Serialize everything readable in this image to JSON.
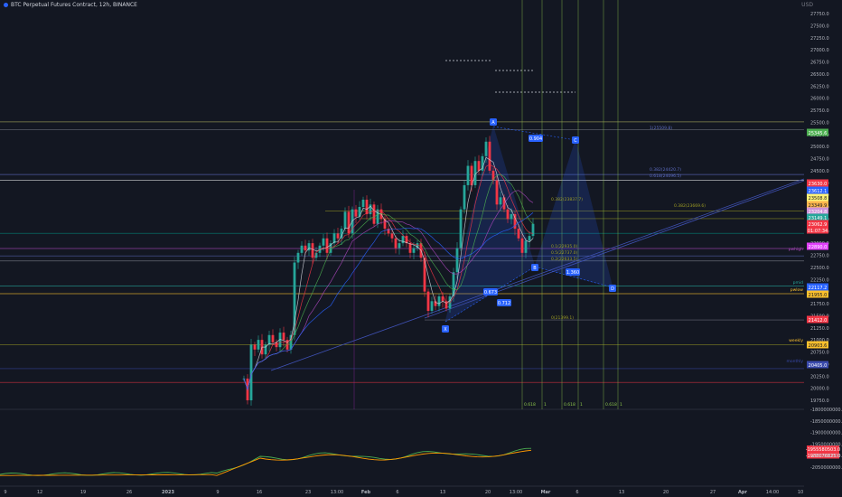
{
  "header": {
    "title": "BTC Perpetual Futures Contract, 12h, BINANCE"
  },
  "axis": {
    "currency": "USD",
    "price_ticks": [
      "27750.0",
      "27500.0",
      "27250.0",
      "27000.0",
      "26750.0",
      "26500.0",
      "26250.0",
      "26000.0",
      "25750.0",
      "25500.0",
      "25250.0",
      "25000.0",
      "24750.0",
      "24500.0",
      "24250.0",
      "24000.0",
      "23750.0",
      "23500.0",
      "23250.0",
      "23000.0",
      "22750.0",
      "22500.0",
      "22250.0",
      "22000.0",
      "21750.0",
      "21500.0",
      "21250.0",
      "21000.0",
      "20750.0",
      "20500.0",
      "20250.0",
      "20000.0",
      "19750.0"
    ],
    "indicator_ticks": [
      "-1800000000.0",
      "-1850000000.0",
      "-1900000000.0",
      "-1950000000.0",
      "-2000000000.0",
      "-2050000000.0"
    ],
    "time_ticks": [
      "9",
      "12",
      "19",
      "26",
      "2023",
      "9",
      "16",
      "23",
      "13:00",
      "Feb",
      "6",
      "13",
      "20",
      "13:00",
      "Mar",
      "6",
      "13",
      "20",
      "27",
      "Apr",
      "14:00",
      "10"
    ]
  },
  "price_badges": [
    {
      "text": "25345.6",
      "color": "#4caf50"
    },
    {
      "text": "23630.0",
      "color": "#f23645"
    },
    {
      "text": "23612.1",
      "color": "#2962ff"
    },
    {
      "text": "23508.8",
      "color": "#fff176"
    },
    {
      "text": "23349.9",
      "color": "#ffb74d"
    },
    {
      "text": "23204.8",
      "color": "#ce93d8"
    },
    {
      "text": "23149.1",
      "color": "#26a69a"
    },
    {
      "text": "23062.9",
      "color": "#f23645"
    },
    {
      "text": "01:07:34",
      "color": "#f23645"
    },
    {
      "text": "22890.0",
      "color": "#e040fb"
    },
    {
      "text": "22117.2",
      "color": "#2962ff"
    },
    {
      "text": "21955.0",
      "color": "#fbc02d"
    },
    {
      "text": "21412.0",
      "color": "#f23645"
    },
    {
      "text": "20903.6",
      "color": "#fbc02d"
    },
    {
      "text": "20405.0",
      "color": "#3949ab"
    }
  ],
  "level_labels": {
    "pwhigh": "pwhigh",
    "pmid": "pmid",
    "pwlow": "pwlow",
    "weekly": "weekly",
    "monthly": "monthly"
  },
  "fib_labels": [
    "1(25509.8)",
    "0.382(24420.7)",
    "0.618(24096.5)",
    "0.382(23669.6)",
    "0.382(23837.7)",
    "0.1(22935.0)",
    "0.5(22737.0)",
    "0.2(22633.5)",
    "0(21399.1)"
  ],
  "pattern_points": {
    "a": "A",
    "b": "B",
    "c": "C",
    "d": "D",
    "x": "X"
  },
  "pattern_ratios": {
    "ab": "0.904",
    "xb": "0.673",
    "bc": "0.712",
    "cd": "1.360"
  },
  "time_fib_labels": [
    "0.618",
    "1",
    "0.618",
    "1",
    "0.618",
    "1"
  ],
  "indicator_badges": [
    {
      "text": "-1955580503.0",
      "color": "#f23645"
    },
    {
      "text": "-1988076825.0",
      "color": "#f23645"
    }
  ],
  "colors": {
    "background": "#131722",
    "up": "#26a69a",
    "down": "#f23645",
    "pattern": "#2962ff"
  }
}
